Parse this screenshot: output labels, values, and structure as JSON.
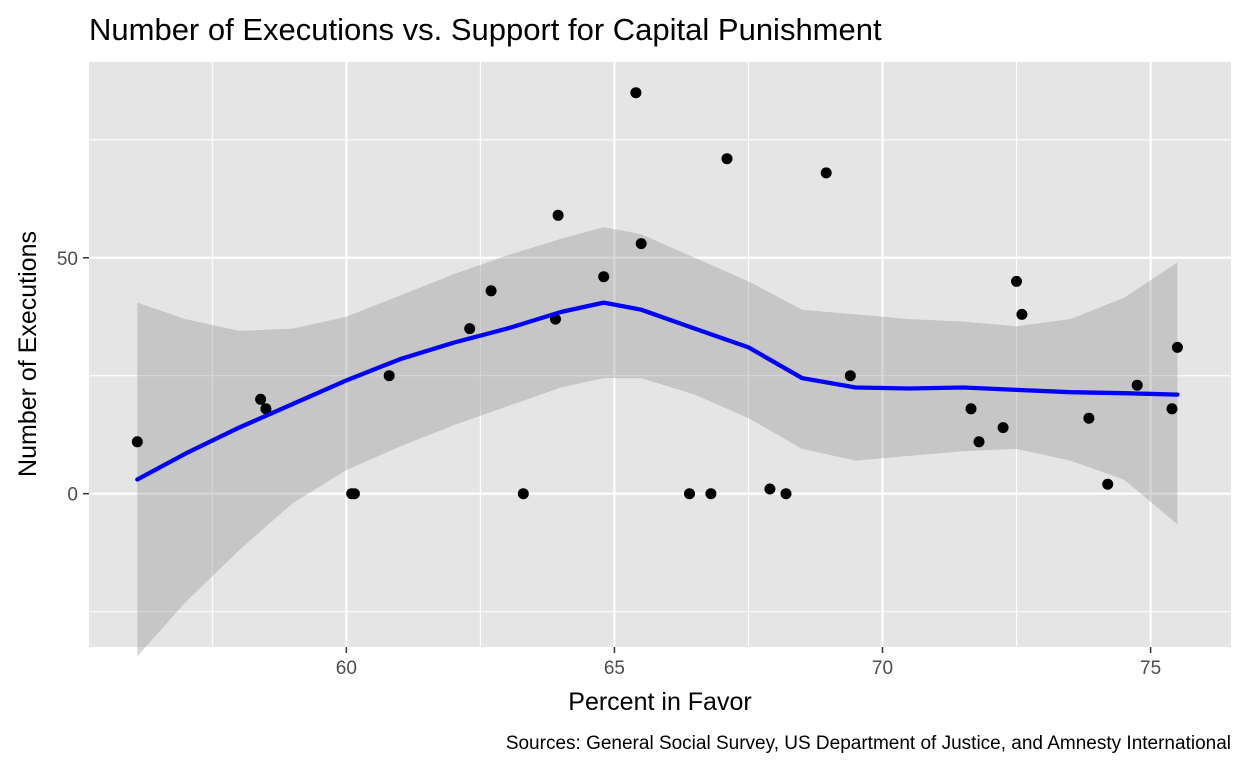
{
  "chart_data": {
    "type": "scatter",
    "title": "Number of Executions vs. Support for Capital Punishment",
    "xlabel": "Percent in Favor",
    "ylabel": "Number of Executions",
    "caption": "Sources: General Social Survey, US Department of Justice, and Amnesty International",
    "xlim": [
      55.2,
      76.5
    ],
    "ylim": [
      -32.5,
      91.5
    ],
    "x_ticks": [
      60,
      65,
      70,
      75
    ],
    "x_tick_labels": [
      "60",
      "65",
      "70",
      "75"
    ],
    "y_ticks": [
      0,
      50
    ],
    "y_tick_labels": [
      "0",
      "50"
    ],
    "grid": true,
    "legend": "none",
    "colors": {
      "panel_background": "#e5e5e5",
      "grid": "#ffffff",
      "points": "#000000",
      "smooth_line": "#0000ff",
      "confidence_band": "#999999"
    },
    "points": [
      {
        "x": 56.1,
        "y": 11
      },
      {
        "x": 58.4,
        "y": 20
      },
      {
        "x": 58.5,
        "y": 18
      },
      {
        "x": 60.1,
        "y": 0
      },
      {
        "x": 60.15,
        "y": 0
      },
      {
        "x": 60.8,
        "y": 25
      },
      {
        "x": 62.3,
        "y": 35
      },
      {
        "x": 62.7,
        "y": 43
      },
      {
        "x": 63.3,
        "y": 0
      },
      {
        "x": 63.9,
        "y": 37
      },
      {
        "x": 63.95,
        "y": 59
      },
      {
        "x": 64.8,
        "y": 46
      },
      {
        "x": 65.4,
        "y": 85
      },
      {
        "x": 65.5,
        "y": 53
      },
      {
        "x": 66.4,
        "y": 0
      },
      {
        "x": 66.8,
        "y": 0
      },
      {
        "x": 67.1,
        "y": 71
      },
      {
        "x": 67.9,
        "y": 1
      },
      {
        "x": 68.2,
        "y": 0
      },
      {
        "x": 68.95,
        "y": 68
      },
      {
        "x": 69.4,
        "y": 25
      },
      {
        "x": 71.65,
        "y": 18
      },
      {
        "x": 71.8,
        "y": 11
      },
      {
        "x": 72.25,
        "y": 14
      },
      {
        "x": 72.5,
        "y": 45
      },
      {
        "x": 72.6,
        "y": 38
      },
      {
        "x": 73.85,
        "y": 16
      },
      {
        "x": 74.2,
        "y": 2
      },
      {
        "x": 74.75,
        "y": 23
      },
      {
        "x": 75.4,
        "y": 18
      },
      {
        "x": 75.5,
        "y": 31
      }
    ],
    "smooth": {
      "method": "loess",
      "x": [
        56.1,
        57.0,
        58.0,
        59.0,
        60.0,
        61.0,
        62.0,
        63.0,
        64.0,
        64.8,
        65.5,
        66.5,
        67.5,
        68.5,
        69.5,
        70.5,
        71.5,
        72.5,
        73.5,
        74.5,
        75.5
      ],
      "fit": [
        3,
        8.5,
        14,
        19,
        24,
        28.5,
        32,
        35,
        38.5,
        40.5,
        39,
        35,
        31,
        24.5,
        22.5,
        22.3,
        22.5,
        22,
        21.5,
        21.3,
        21
      ],
      "lower": [
        -34.5,
        -23,
        -12,
        -2,
        5,
        10,
        14.5,
        18.5,
        22.5,
        24.5,
        24.5,
        21,
        16,
        9.5,
        7,
        8,
        9,
        9.5,
        7,
        3,
        -6.5
      ],
      "upper": [
        40.5,
        37,
        34.5,
        35,
        37.5,
        42,
        46.5,
        50.5,
        54,
        56.5,
        55,
        50,
        45,
        39,
        38,
        37,
        36.5,
        35.5,
        37,
        41.5,
        49
      ]
    }
  }
}
